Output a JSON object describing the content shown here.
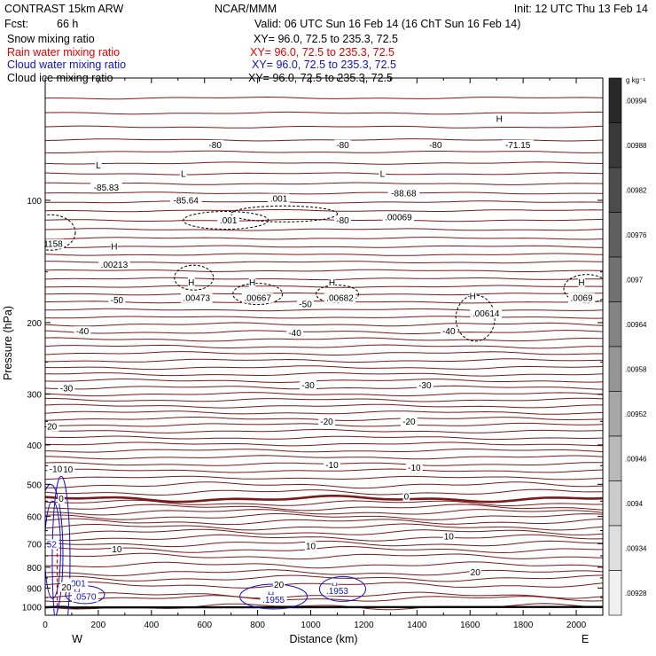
{
  "header": {
    "model": "CONTRAST 15km ARW",
    "org": "NCAR/MMM",
    "init": "Init: 12 UTC Thu 13 Feb 14",
    "fcst_label": "Fcst:",
    "fcst_value": "66 h",
    "valid": "Valid: 06 UTC Sun 16 Feb 14 (16 ChT Sun 16 Feb 14)",
    "fields": [
      {
        "name": "Snow mixing ratio",
        "xy": "XY=  96.0, 72.5 to 235.3, 72.5",
        "color": "#000000"
      },
      {
        "name": "Rain water mixing ratio",
        "xy": "XY=  96.0, 72.5 to 235.3, 72.5",
        "color": "#e00000"
      },
      {
        "name": "Cloud water mixing ratio",
        "xy": "XY=  96.0, 72.5 to 235.3, 72.5",
        "color": "#1010c0"
      },
      {
        "name": "Cloud ice mixing ratio",
        "xy": "XY=  96.0, 72.5 to 235.3, 72.5",
        "color": "#000000"
      }
    ]
  },
  "colorbar": {
    "unit": "g kg⁻¹",
    "labels": [
      ".00994",
      ".00988",
      ".00982",
      ".00976",
      ".0097",
      ".00964",
      ".00958",
      ".00952",
      ".00946",
      ".0094",
      ".00934",
      ".00928"
    ]
  },
  "chart_data": {
    "type": "contour",
    "xlabel": "Distance (km)",
    "ylabel": "Pressure (hPa)",
    "xlim": [
      0,
      2100
    ],
    "ylim": [
      1050,
      50
    ],
    "y_scale": "log",
    "x_ticks": [
      0,
      200,
      400,
      600,
      800,
      1000,
      1200,
      1400,
      1600,
      1800,
      2000
    ],
    "y_ticks": [
      100,
      200,
      300,
      400,
      500,
      600,
      700,
      800,
      900,
      1000
    ],
    "x_end_labels": {
      "left": "W",
      "right": "E"
    },
    "temperature_contours": {
      "color": "#7a1a1a",
      "lines": [
        {
          "level": "10",
          "p": [
            1000,
            955
          ]
        },
        {
          "level": "20",
          "p": [
            938,
            885,
            852,
            825
          ]
        },
        {
          "level": "10",
          "p": [
            790,
            752,
            724,
            700,
            677,
            656,
            637
          ]
        },
        {
          "level": "0",
          "p": [
            618,
            601,
            585,
            570,
            556,
            543
          ]
        },
        {
          "level": "-10",
          "p": [
            523,
            502,
            482,
            463,
            446,
            429,
            413,
            398,
            384,
            370,
            357,
            345
          ]
        },
        {
          "level": "-20",
          "p": [
            333,
            321,
            310,
            300
          ]
        },
        {
          "level": "-30",
          "p": [
            289,
            278,
            268,
            258,
            248,
            238,
            229,
            220,
            211
          ]
        },
        {
          "level": "-40",
          "p": [
            202,
            194,
            186,
            178,
            170,
            163,
            156,
            149,
            142,
            136,
            130,
            124,
            118,
            112,
            106,
            101,
            96,
            91,
            86,
            81,
            76,
            71,
            66,
            61,
            56
          ]
        }
      ],
      "labels": [
        {
          "text": "-80",
          "x": 640,
          "p": 73
        },
        {
          "text": "-80",
          "x": 1120,
          "p": 73
        },
        {
          "text": "-80",
          "x": 1470,
          "p": 73
        },
        {
          "text": "-80",
          "x": 1120,
          "p": 112
        },
        {
          "text": "-50",
          "x": 270,
          "p": 176
        },
        {
          "text": "-50",
          "x": 980,
          "p": 180
        },
        {
          "text": "-40",
          "x": 140,
          "p": 210
        },
        {
          "text": "-40",
          "x": 940,
          "p": 212
        },
        {
          "text": "-40",
          "x": 1520,
          "p": 210
        },
        {
          "text": "-30",
          "x": 80,
          "p": 290
        },
        {
          "text": "-30",
          "x": 990,
          "p": 285
        },
        {
          "text": "-30",
          "x": 1430,
          "p": 285
        },
        {
          "text": "-20",
          "x": 1060,
          "p": 350
        },
        {
          "text": "-20",
          "x": 1370,
          "p": 350
        },
        {
          "text": "-20",
          "x": 20,
          "p": 360
        },
        {
          "text": "-10",
          "x": 80,
          "p": 460
        },
        {
          "text": "-10",
          "x": 1080,
          "p": 448
        },
        {
          "text": "-10",
          "x": 1390,
          "p": 455
        },
        {
          "text": "-10",
          "x": 40,
          "p": 458
        },
        {
          "text": "0",
          "x": 60,
          "p": 543
        },
        {
          "text": "0",
          "x": 1360,
          "p": 535
        },
        {
          "text": "10",
          "x": 270,
          "p": 722
        },
        {
          "text": "10",
          "x": 1000,
          "p": 710
        },
        {
          "text": "10",
          "x": 1520,
          "p": 672
        },
        {
          "text": "20",
          "x": 880,
          "p": 882
        },
        {
          "text": "20",
          "x": 1620,
          "p": 823
        },
        {
          "text": "20",
          "x": 80,
          "p": 896
        },
        {
          "text": "-71.15",
          "x": 1780,
          "p": 73
        }
      ]
    },
    "ice_contours": {
      "color": "#000000",
      "labels": [
        {
          "text": "L",
          "x": 200,
          "p": 82
        },
        {
          "text": "L",
          "x": 520,
          "p": 86
        },
        {
          "text": "L",
          "x": 1270,
          "p": 86
        },
        {
          "text": "H",
          "x": 1710,
          "p": 63
        },
        {
          "text": "H",
          "x": 260,
          "p": 130
        },
        {
          "text": "H",
          "x": 550,
          "p": 159
        },
        {
          "text": "H",
          "x": 780,
          "p": 159
        },
        {
          "text": "H",
          "x": 1080,
          "p": 159
        },
        {
          "text": "H",
          "x": 1610,
          "p": 172
        },
        {
          "text": "H",
          "x": 2020,
          "p": 159
        },
        {
          "text": "-85.83",
          "x": 230,
          "p": 93
        },
        {
          "text": "-85.64",
          "x": 530,
          "p": 100
        },
        {
          "text": "-88.68",
          "x": 1350,
          "p": 96
        },
        {
          "text": ".001",
          "x": 690,
          "p": 112
        },
        {
          "text": ".001",
          "x": 880,
          "p": 99
        },
        {
          "text": ".00069",
          "x": 1330,
          "p": 110
        },
        {
          "text": ".00213",
          "x": 260,
          "p": 144
        },
        {
          "text": ".00473",
          "x": 570,
          "p": 174
        },
        {
          "text": ".00667",
          "x": 800,
          "p": 174
        },
        {
          "text": ".00682",
          "x": 1110,
          "p": 174
        },
        {
          "text": ".00614",
          "x": 1660,
          "p": 190
        },
        {
          "text": ".0069",
          "x": 2020,
          "p": 174
        },
        {
          "text": "1158",
          "x": 30,
          "p": 128
        }
      ]
    },
    "cloud_water_contours": {
      "color": "#1010c0",
      "labels": [
        {
          "text": "H",
          "x": 120,
          "p": 922
        },
        {
          "text": ".0570",
          "x": 150,
          "p": 946
        },
        {
          "text": "H",
          "x": 850,
          "p": 935
        },
        {
          "text": ".1955",
          "x": 860,
          "p": 962
        },
        {
          "text": "H",
          "x": 1090,
          "p": 889
        },
        {
          "text": ".1953",
          "x": 1100,
          "p": 914
        },
        {
          "text": ".001",
          "x": 120,
          "p": 876
        },
        {
          "text": ".52",
          "x": 20,
          "p": 702
        }
      ]
    },
    "rain_water_contours": {
      "color": "#e00000",
      "labels": [
        {
          "text": "20",
          "x": 80,
          "p": 896
        }
      ]
    }
  }
}
